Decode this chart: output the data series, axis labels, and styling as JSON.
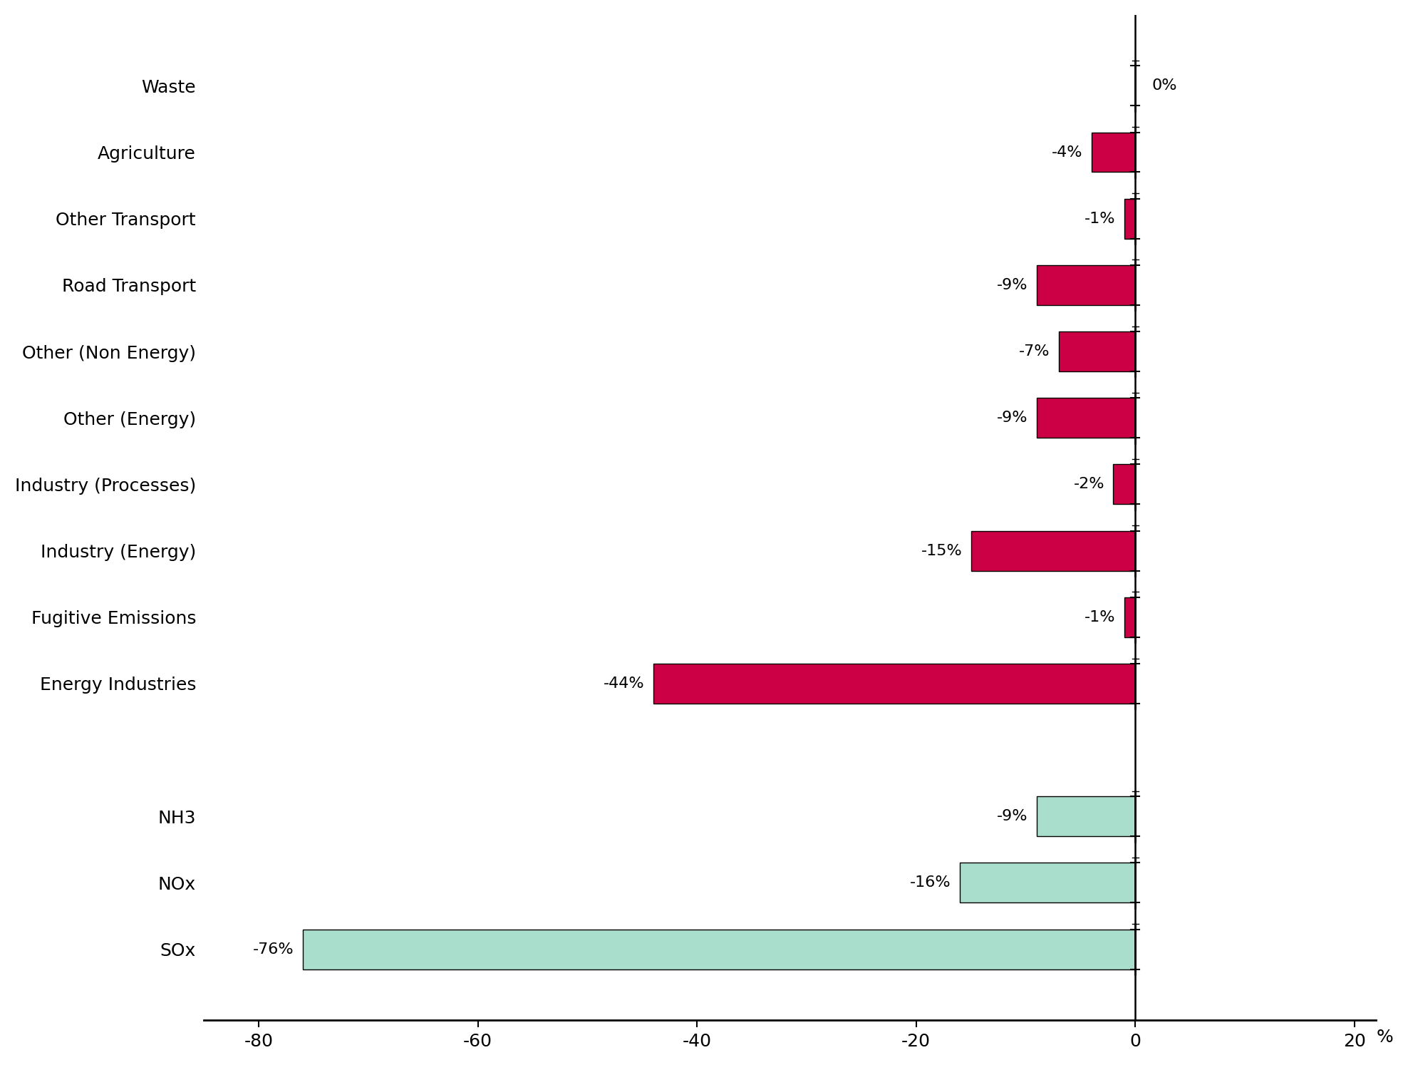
{
  "categories": [
    "Waste",
    "Agriculture",
    "Other Transport",
    "Road Transport",
    "Other (Non Energy)",
    "Other (Energy)",
    "Industry (Processes)",
    "Industry (Energy)",
    "Fugitive Emissions",
    "Energy Industries",
    "",
    "NH3",
    "NOx",
    "SOx"
  ],
  "values": [
    0,
    -4,
    -1,
    -9,
    -7,
    -9,
    -2,
    -15,
    -1,
    -44,
    null,
    -9,
    -16,
    -76
  ],
  "labels": [
    "0%",
    "-4%",
    "-1%",
    "-9%",
    "-7%",
    "-9%",
    "-2%",
    "-15%",
    "-1%",
    "-44%",
    "",
    "-9%",
    "-16%",
    "-76%"
  ],
  "bar_colors": [
    "#CC0044",
    "#CC0044",
    "#CC0044",
    "#CC0044",
    "#CC0044",
    "#CC0044",
    "#CC0044",
    "#CC0044",
    "#CC0044",
    "#CC0044",
    null,
    "#AADECC",
    "#AADECC",
    "#AADECC"
  ],
  "sector_color": "#CC0044",
  "pollutant_color": "#AADECC",
  "xlim": [
    -85,
    22
  ],
  "xticks": [
    -80,
    -60,
    -40,
    -20,
    0,
    20
  ],
  "xlabel": "%",
  "background_color": "#ffffff",
  "bar_edgecolor": "#000000",
  "bar_linewidth": 1.0,
  "figsize": [
    19.76,
    14.94
  ],
  "dpi": 100
}
